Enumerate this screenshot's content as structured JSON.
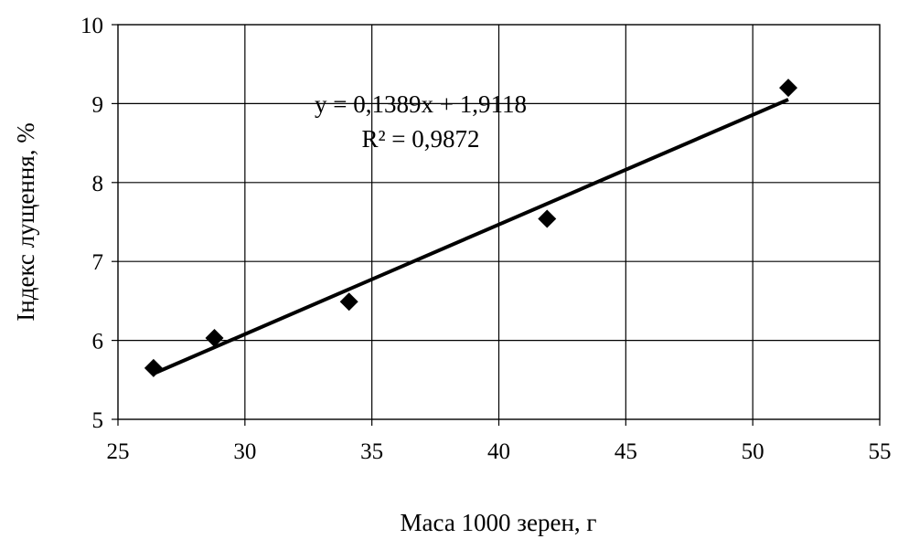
{
  "chart_data": {
    "type": "scatter",
    "xlabel": "Маса 1000 зерен, г",
    "ylabel": "Індекс лущення, %",
    "xlim": [
      25,
      55
    ],
    "ylim": [
      5,
      10
    ],
    "xticks": [
      "25",
      "30",
      "35",
      "40",
      "45",
      "50",
      "55"
    ],
    "yticks": [
      "5",
      "6",
      "7",
      "8",
      "9",
      "10"
    ],
    "grid": true,
    "series": [
      {
        "marker": "diamond",
        "color": "#000000",
        "points": [
          {
            "x": 26.4,
            "y": 5.65
          },
          {
            "x": 28.8,
            "y": 6.03
          },
          {
            "x": 34.1,
            "y": 6.49
          },
          {
            "x": 41.9,
            "y": 7.54
          },
          {
            "x": 51.4,
            "y": 9.2
          }
        ]
      }
    ],
    "trendline": {
      "type": "linear",
      "slope": 0.1389,
      "intercept": 1.9118,
      "x_range": [
        26.4,
        51.4
      ],
      "equation": "y = 0,1389x + 1,9118",
      "r_squared": "R² = 0,9872"
    }
  }
}
